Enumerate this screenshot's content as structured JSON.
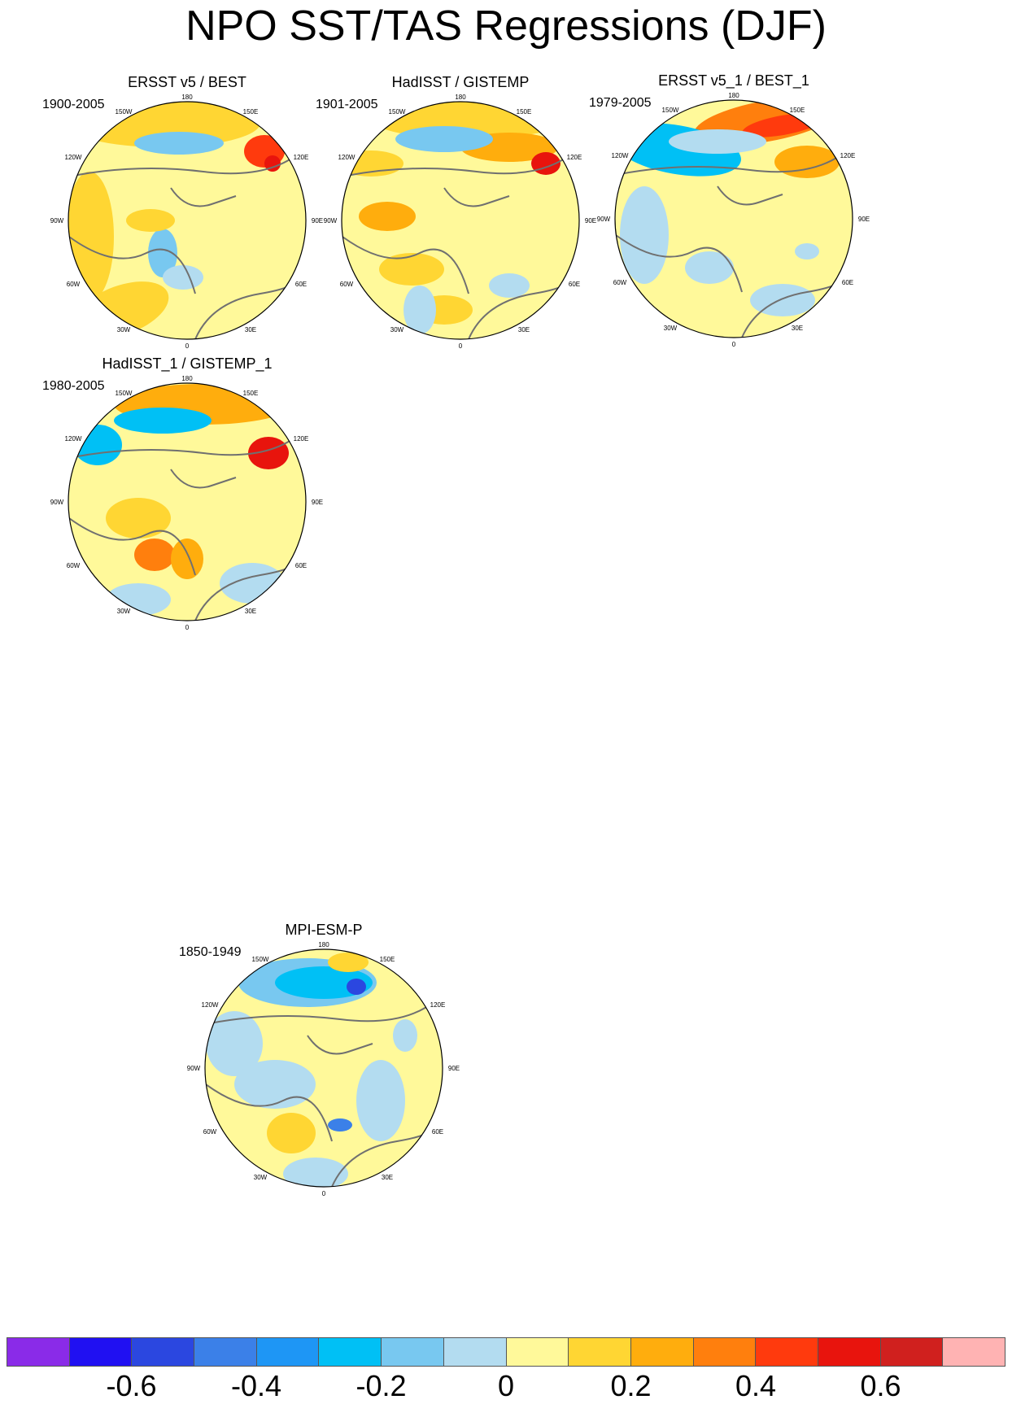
{
  "title": "NPO SST/TAS Regressions (DJF)",
  "map_labels": {
    "top": "180",
    "upper_left": "150W",
    "upper_right": "150E",
    "mid_left_upper": "120W",
    "mid_right_upper": "120E",
    "left": "90W",
    "right": "90E",
    "mid_left_lower": "60W",
    "mid_right_lower": "60E",
    "lower_left": "30W",
    "lower_right": "30E",
    "bottom": "0"
  },
  "panels": [
    {
      "title": "ERSST v5 / BEST",
      "years": "1900-2005"
    },
    {
      "title": "HadISST / GISTEMP",
      "years": "1901-2005"
    },
    {
      "title": "ERSST v5_1 / BEST_1",
      "years": "1979-2005"
    },
    {
      "title": "HadISST_1 / GISTEMP_1",
      "years": "1980-2005"
    },
    {
      "title": "MPI-ESM-P",
      "years": "1850-1949"
    }
  ],
  "colorbar": {
    "colors": [
      "#8a2be8",
      "#2010f2",
      "#2b47e0",
      "#3b80e8",
      "#1e96f5",
      "#00c0f5",
      "#78c8f0",
      "#b3dcf0",
      "#fff99a",
      "#ffd633",
      "#ffad0d",
      "#ff7f0d",
      "#ff3a0d",
      "#e8140d",
      "#d0201e",
      "#ffb3b3"
    ],
    "labels": [
      "-0.6",
      "-0.4",
      "-0.2",
      "0",
      "0.2",
      "0.4",
      "0.6"
    ]
  },
  "colors": {
    "zero_fill": "#fff99a",
    "coast": "#707070",
    "map_border": "#000000"
  }
}
